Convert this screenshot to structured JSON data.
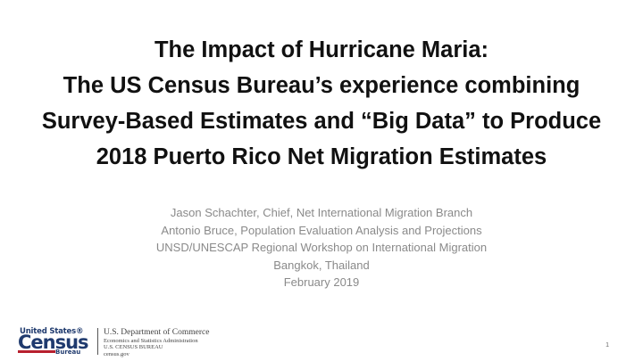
{
  "slide": {
    "title_lines": [
      "The Impact of Hurricane Maria:",
      "The US Census Bureau’s experience combining",
      "Survey-Based Estimates and “Big Data” to Produce",
      "2018 Puerto Rico Net Migration Estimates"
    ],
    "subtitle_lines": [
      "Jason Schachter, Chief, Net International Migration Branch",
      "Antonio Bruce, Population Evaluation Analysis and Projections",
      "UNSD/UNESCAP Regional Workshop on International Migration",
      "Bangkok, Thailand",
      "February 2019"
    ],
    "page_number": "1"
  },
  "footer": {
    "logo": {
      "top": "United States®",
      "main": "Census",
      "bottom": "Bureau"
    },
    "dept_lines": [
      "U.S. Department of Commerce",
      "Economics and Statistics Administration",
      "U.S. CENSUS BUREAU",
      "census.gov"
    ]
  },
  "colors": {
    "title": "#111111",
    "subtitle": "#8a8a8a",
    "logo_blue": "#1f3a6e",
    "logo_red": "#b8202e"
  }
}
